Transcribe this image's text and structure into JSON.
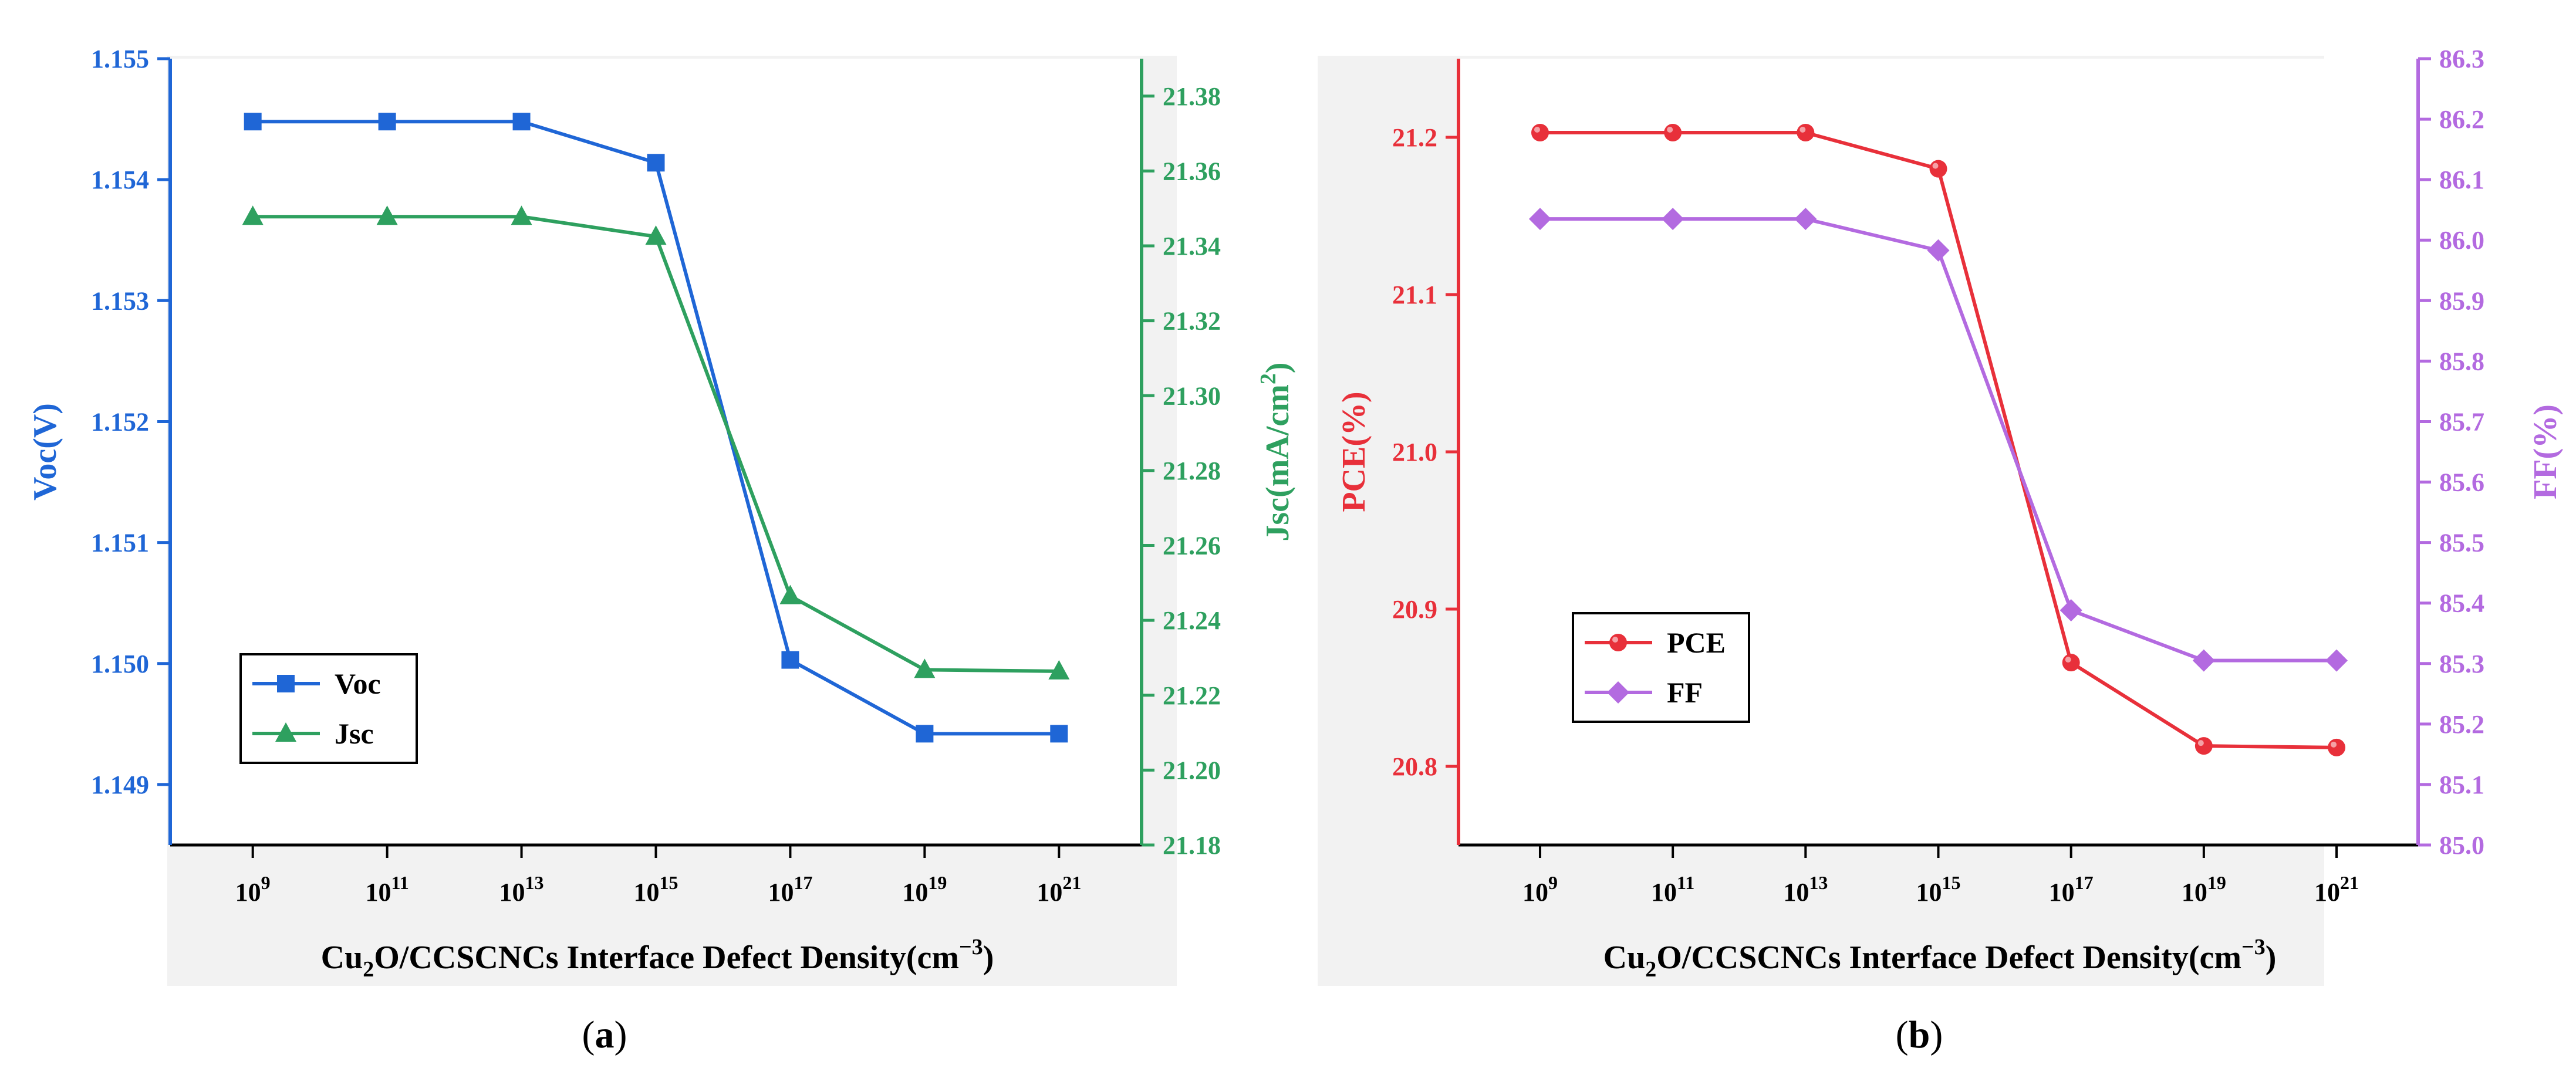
{
  "colors": {
    "voc": "#1F66D6",
    "jsc": "#2EA05F",
    "pce": "#E8303A",
    "ff": "#B36AE0",
    "axis": "#000000",
    "panel_bg": "#F2F2F2"
  },
  "chart_data": [
    {
      "type": "line",
      "panel": "a",
      "caption_paren_open": "(",
      "caption_letter": "a",
      "caption_paren_close": ")",
      "xlabel": {
        "prefix": "Cu",
        "sub": "2",
        "mid": "O/CCSCNCs Interface Defect Density(cm",
        "sup": "−3",
        "suffix": ")"
      },
      "x_ticks": [
        {
          "base": "10",
          "exp": "9"
        },
        {
          "base": "10",
          "exp": "11"
        },
        {
          "base": "10",
          "exp": "13"
        },
        {
          "base": "10",
          "exp": "15"
        },
        {
          "base": "10",
          "exp": "17"
        },
        {
          "base": "10",
          "exp": "19"
        },
        {
          "base": "10",
          "exp": "21"
        }
      ],
      "left_axis": {
        "label": "Voc(V)",
        "range": [
          1.1485,
          1.155
        ],
        "ticks": [
          "1.149",
          "1.150",
          "1.151",
          "1.152",
          "1.153",
          "1.154",
          "1.155"
        ],
        "tick_values": [
          1.149,
          1.15,
          1.151,
          1.152,
          1.153,
          1.154,
          1.155
        ]
      },
      "right_axis": {
        "label": {
          "prefix": "Jsc(mA/cm",
          "sup": "2",
          "suffix": ")"
        },
        "range": [
          21.18,
          21.39
        ],
        "ticks": [
          "21.18",
          "21.20",
          "21.22",
          "21.24",
          "21.26",
          "21.28",
          "21.30",
          "21.32",
          "21.34",
          "21.36",
          "21.38"
        ],
        "tick_values": [
          21.18,
          21.2,
          21.22,
          21.24,
          21.26,
          21.28,
          21.3,
          21.32,
          21.34,
          21.36,
          21.38
        ]
      },
      "series": [
        {
          "name": "Voc",
          "axis": "left",
          "marker": "square",
          "values": [
            1.15448,
            1.15448,
            1.15448,
            1.15414,
            1.15003,
            1.14942,
            1.14942
          ]
        },
        {
          "name": "Jsc",
          "axis": "right",
          "marker": "triangle",
          "values": [
            21.3478,
            21.3478,
            21.3478,
            21.3425,
            21.2465,
            21.2268,
            21.2264
          ]
        }
      ]
    },
    {
      "type": "line",
      "panel": "b",
      "caption_paren_open": "(",
      "caption_letter": "b",
      "caption_paren_close": ")",
      "xlabel": {
        "prefix": "Cu",
        "sub": "2",
        "mid": "O/CCSCNCs Interface Defect Density(cm",
        "sup": "−3",
        "suffix": ")"
      },
      "x_ticks": [
        {
          "base": "10",
          "exp": "9"
        },
        {
          "base": "10",
          "exp": "11"
        },
        {
          "base": "10",
          "exp": "13"
        },
        {
          "base": "10",
          "exp": "15"
        },
        {
          "base": "10",
          "exp": "17"
        },
        {
          "base": "10",
          "exp": "19"
        },
        {
          "base": "10",
          "exp": "21"
        }
      ],
      "left_axis": {
        "label": "PCE(%)",
        "range": [
          20.75,
          21.25
        ],
        "ticks": [
          "20.8",
          "20.9",
          "21.0",
          "21.1",
          "21.2"
        ],
        "tick_values": [
          20.8,
          20.9,
          21.0,
          21.1,
          21.2
        ]
      },
      "right_axis": {
        "label": "FF(%)",
        "range": [
          85.0,
          86.3
        ],
        "ticks": [
          "85.0",
          "85.1",
          "85.2",
          "85.3",
          "85.4",
          "85.5",
          "85.6",
          "85.7",
          "85.8",
          "85.9",
          "86.0",
          "86.1",
          "86.2",
          "86.3"
        ],
        "tick_values": [
          85.0,
          85.1,
          85.2,
          85.3,
          85.4,
          85.5,
          85.6,
          85.7,
          85.8,
          85.9,
          86.0,
          86.1,
          86.2,
          86.3
        ]
      },
      "series": [
        {
          "name": "PCE",
          "axis": "left",
          "marker": "circle",
          "values": [
            21.203,
            21.203,
            21.203,
            21.18,
            20.866,
            20.813,
            20.812
          ]
        },
        {
          "name": "FF",
          "axis": "right",
          "marker": "diamond",
          "values": [
            86.035,
            86.035,
            86.035,
            85.983,
            85.388,
            85.305,
            85.305
          ]
        }
      ]
    }
  ]
}
